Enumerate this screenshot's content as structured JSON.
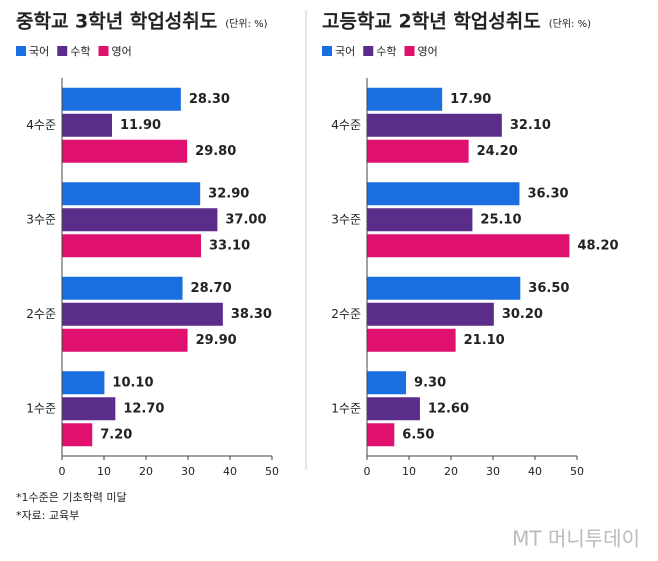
{
  "chart_data": [
    {
      "type": "hbar",
      "title": "중학교 3학년 학업성취도",
      "unit": "(단위: %)",
      "categories": [
        "4수준",
        "3수준",
        "2수준",
        "1수준"
      ],
      "series": [
        {
          "name": "국어",
          "color": "#1a6fe0",
          "values": [
            28.3,
            32.9,
            28.7,
            10.1
          ],
          "value_labels": [
            "28.30",
            "32.90",
            "28.70",
            "10.10"
          ]
        },
        {
          "name": "수학",
          "color": "#5b2d8a",
          "values": [
            11.9,
            37.0,
            38.3,
            12.7
          ],
          "value_labels": [
            "11.90",
            "37.00",
            "38.30",
            "12.70"
          ]
        },
        {
          "name": "영어",
          "color": "#e0106e",
          "values": [
            29.8,
            33.1,
            29.9,
            7.2
          ],
          "value_labels": [
            "29.80",
            "33.10",
            "29.90",
            "7.20"
          ]
        }
      ],
      "xlim": [
        0,
        50
      ],
      "xticks": [
        0,
        10,
        20,
        30,
        40,
        50
      ]
    },
    {
      "type": "hbar",
      "title": "고등학교 2학년 학업성취도",
      "unit": "(단위: %)",
      "categories": [
        "4수준",
        "3수준",
        "2수준",
        "1수준"
      ],
      "series": [
        {
          "name": "국어",
          "color": "#1a6fe0",
          "values": [
            17.9,
            36.3,
            36.5,
            9.3
          ],
          "value_labels": [
            "17.90",
            "36.30",
            "36.50",
            "9.30"
          ]
        },
        {
          "name": "수학",
          "color": "#5b2d8a",
          "values": [
            32.1,
            25.1,
            30.2,
            12.6
          ],
          "value_labels": [
            "32.10",
            "25.10",
            "30.20",
            "12.60"
          ]
        },
        {
          "name": "영어",
          "color": "#e0106e",
          "values": [
            24.2,
            48.2,
            21.1,
            6.5
          ],
          "value_labels": [
            "24.20",
            "48.20",
            "21.10",
            "6.50"
          ]
        }
      ],
      "xlim": [
        0,
        50
      ],
      "xticks": [
        0,
        10,
        20,
        30,
        40,
        50
      ]
    }
  ],
  "notes": [
    "*1수준은 기초학력 미달",
    "*자료: 교육부"
  ],
  "source": "MT 머니투데이"
}
